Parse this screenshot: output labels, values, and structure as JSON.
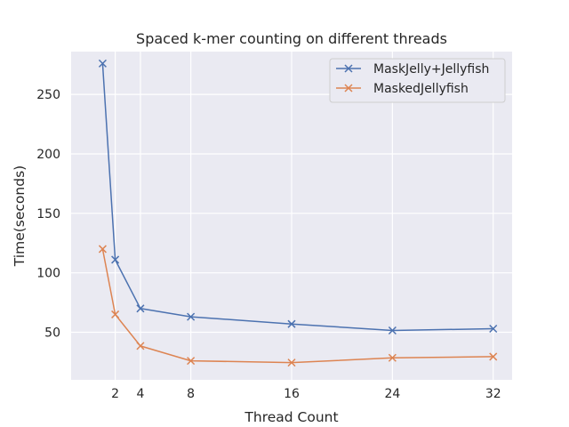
{
  "chart_data": {
    "type": "line",
    "title": "Spaced k-mer counting on different threads",
    "xlabel": "Thread Count",
    "ylabel": "Time(seconds)",
    "x": [
      1,
      2,
      4,
      8,
      16,
      24,
      32
    ],
    "xticks": [
      2,
      4,
      8,
      16,
      24,
      32
    ],
    "yticks": [
      50,
      100,
      150,
      200,
      250
    ],
    "xlim": [
      -1.5,
      33.5
    ],
    "ylim": [
      10,
      286
    ],
    "grid": true,
    "legend_position": "top-right",
    "series": [
      {
        "name": "MaskJelly+Jellyfish",
        "color": "#4c72b0",
        "marker": "x",
        "values": [
          276,
          111,
          70,
          63,
          57,
          51.5,
          53
        ]
      },
      {
        "name": "MaskedJellyfish",
        "color": "#dd8452",
        "marker": "x",
        "values": [
          120,
          65,
          38.5,
          26,
          24.5,
          28.5,
          29.5
        ]
      }
    ],
    "background": "#eaeaf2",
    "grid_color": "#ffffff"
  }
}
